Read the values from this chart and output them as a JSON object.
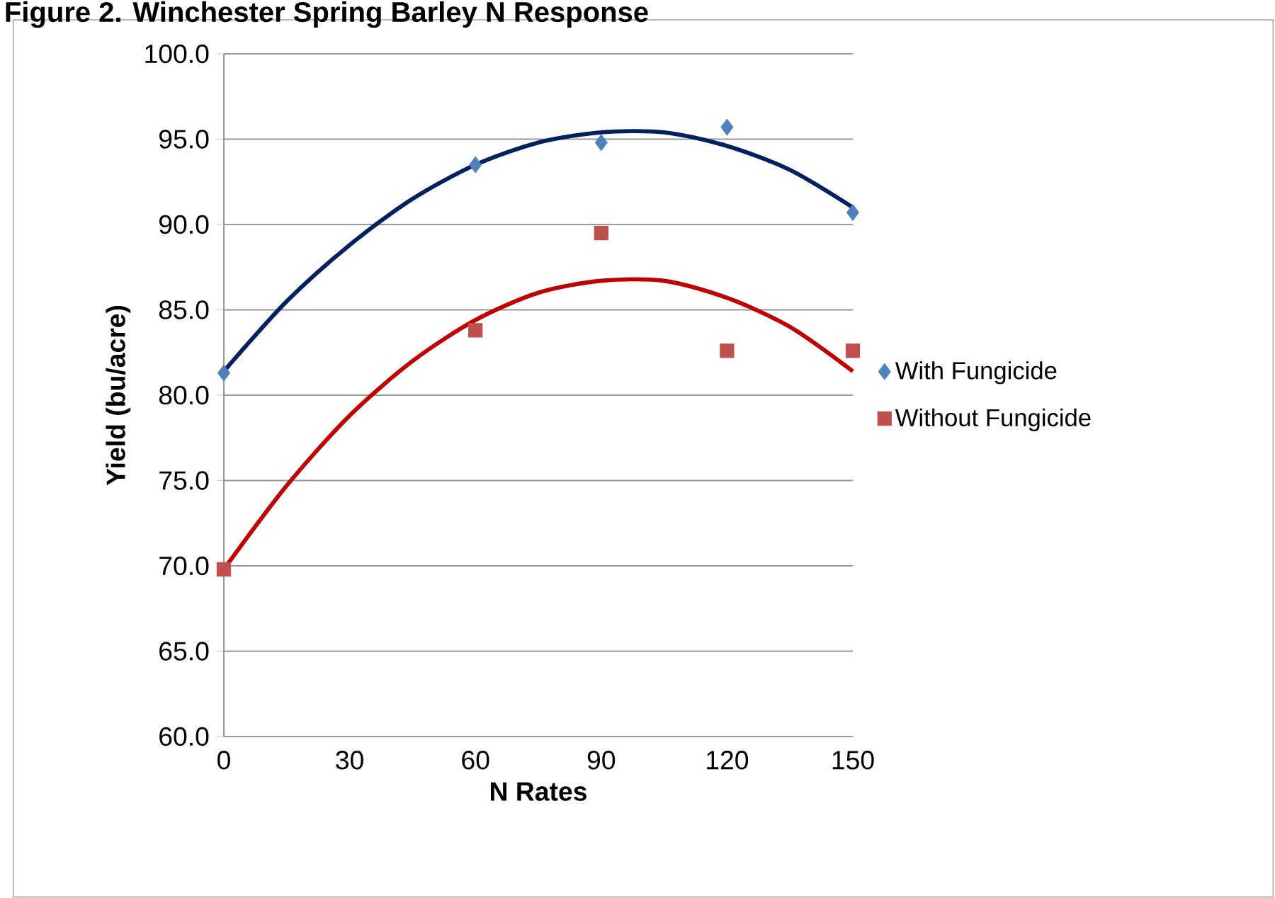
{
  "chart_data": {
    "type": "scatter",
    "title": "Figure 2. Winchester Spring Barley N Response",
    "xlabel": "N Rates",
    "ylabel": "Yield (bu/acre)",
    "x": [
      0,
      60,
      90,
      120,
      150
    ],
    "series": [
      {
        "name": "With Fungicide",
        "color": "#4f81bd",
        "marker": "diamond",
        "values": [
          81.3,
          93.5,
          94.8,
          95.7,
          90.7
        ]
      },
      {
        "name": "Without Fungicide",
        "color": "#c0504d",
        "marker": "square",
        "values": [
          69.8,
          83.8,
          89.5,
          82.6,
          82.6
        ]
      },
      {
        "type": "line",
        "color": "#002060",
        "marker": "none",
        "x": [
          0,
          15,
          30,
          45,
          60,
          75,
          90,
          105,
          120,
          135,
          150
        ],
        "values": [
          81.4,
          85.5,
          88.8,
          91.5,
          93.5,
          94.8,
          95.4,
          95.4,
          94.6,
          93.2,
          91.0
        ]
      },
      {
        "type": "line",
        "color": "#c00000",
        "marker": "none",
        "x": [
          0,
          15,
          30,
          45,
          60,
          75,
          90,
          105,
          120,
          135,
          150
        ],
        "values": [
          69.8,
          74.7,
          78.8,
          82.0,
          84.4,
          86.0,
          86.7,
          86.7,
          85.7,
          84.0,
          81.4
        ]
      }
    ],
    "xlim": [
      0,
      150
    ],
    "xticks": [
      0,
      30,
      60,
      90,
      120,
      150
    ],
    "ylim": [
      60,
      100
    ],
    "yticks": [
      {
        "value": 60,
        "label": "60.0"
      },
      {
        "value": 65,
        "label": "65.0"
      },
      {
        "value": 70,
        "label": "70.0"
      },
      {
        "value": 75,
        "label": "75.0"
      },
      {
        "value": 80,
        "label": "80.0"
      },
      {
        "value": 85,
        "label": "85.0"
      },
      {
        "value": 90,
        "label": "90.0"
      },
      {
        "value": 95,
        "label": "95.0"
      },
      {
        "value": 100,
        "label": "100.0"
      }
    ],
    "grid": "y",
    "legend": "right"
  }
}
